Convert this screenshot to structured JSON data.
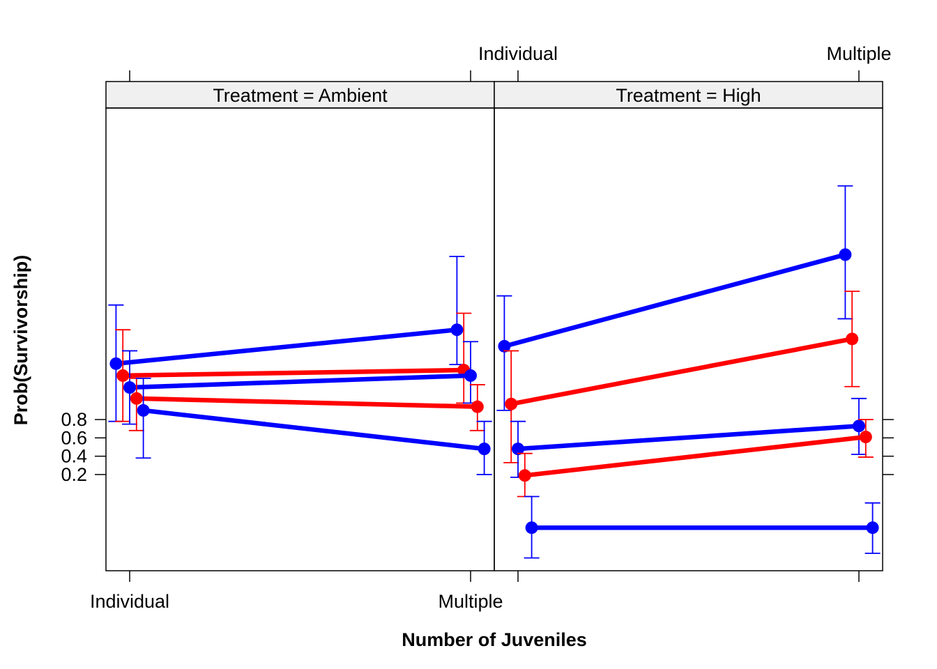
{
  "chart_data": {
    "type": "line",
    "xlabel": "Number of Juveniles",
    "ylabel": "Prob(Survivorship)",
    "categories": [
      "Individual",
      "Multiple"
    ],
    "yticks": [
      "0.2",
      "0.4",
      "0.6",
      "0.8"
    ],
    "ytick_values": [
      0.2,
      0.4,
      0.6,
      0.8
    ],
    "ylim": [
      -0.85,
      4.2
    ],
    "grid": false,
    "panels": [
      {
        "strip": "Treatment = Ambient",
        "series": [
          {
            "color": "#0000ff",
            "offset": -0.04,
            "values": [
              1.41,
              1.78
            ],
            "lower": [
              0.78,
              1.4
            ],
            "upper": [
              2.05,
              2.58
            ]
          },
          {
            "color": "#ff0000",
            "offset": -0.02,
            "values": [
              1.28,
              1.34
            ],
            "lower": [
              0.78,
              0.98
            ],
            "upper": [
              1.78,
              1.96
            ]
          },
          {
            "color": "#0000ff",
            "offset": 0.0,
            "values": [
              1.15,
              1.28
            ],
            "lower": [
              0.75,
              0.98
            ],
            "upper": [
              1.55,
              1.65
            ]
          },
          {
            "color": "#ff0000",
            "offset": 0.02,
            "values": [
              1.03,
              0.94
            ],
            "lower": [
              0.68,
              0.68
            ],
            "upper": [
              1.25,
              1.18
            ]
          },
          {
            "color": "#0000ff",
            "offset": 0.04,
            "values": [
              0.9,
              0.48
            ],
            "lower": [
              0.38,
              0.2
            ],
            "upper": [
              1.25,
              0.78
            ]
          }
        ]
      },
      {
        "strip": "Treatment = High",
        "series": [
          {
            "color": "#0000ff",
            "offset": -0.04,
            "values": [
              1.6,
              2.6
            ],
            "lower": [
              0.9,
              1.9
            ],
            "upper": [
              2.15,
              3.35
            ]
          },
          {
            "color": "#ff0000",
            "offset": -0.02,
            "values": [
              0.97,
              1.68
            ],
            "lower": [
              0.33,
              1.16
            ],
            "upper": [
              1.55,
              2.2
            ]
          },
          {
            "color": "#0000ff",
            "offset": 0.0,
            "values": [
              0.48,
              0.73
            ],
            "lower": [
              0.17,
              0.42
            ],
            "upper": [
              0.78,
              1.03
            ]
          },
          {
            "color": "#ff0000",
            "offset": 0.02,
            "values": [
              0.19,
              0.61
            ],
            "lower": [
              -0.04,
              0.39
            ],
            "upper": [
              0.43,
              0.8
            ]
          },
          {
            "color": "#0000ff",
            "offset": 0.04,
            "values": [
              -0.38,
              -0.38
            ],
            "lower": [
              -0.71,
              -0.66
            ],
            "upper": [
              -0.04,
              -0.11
            ]
          }
        ]
      }
    ]
  }
}
